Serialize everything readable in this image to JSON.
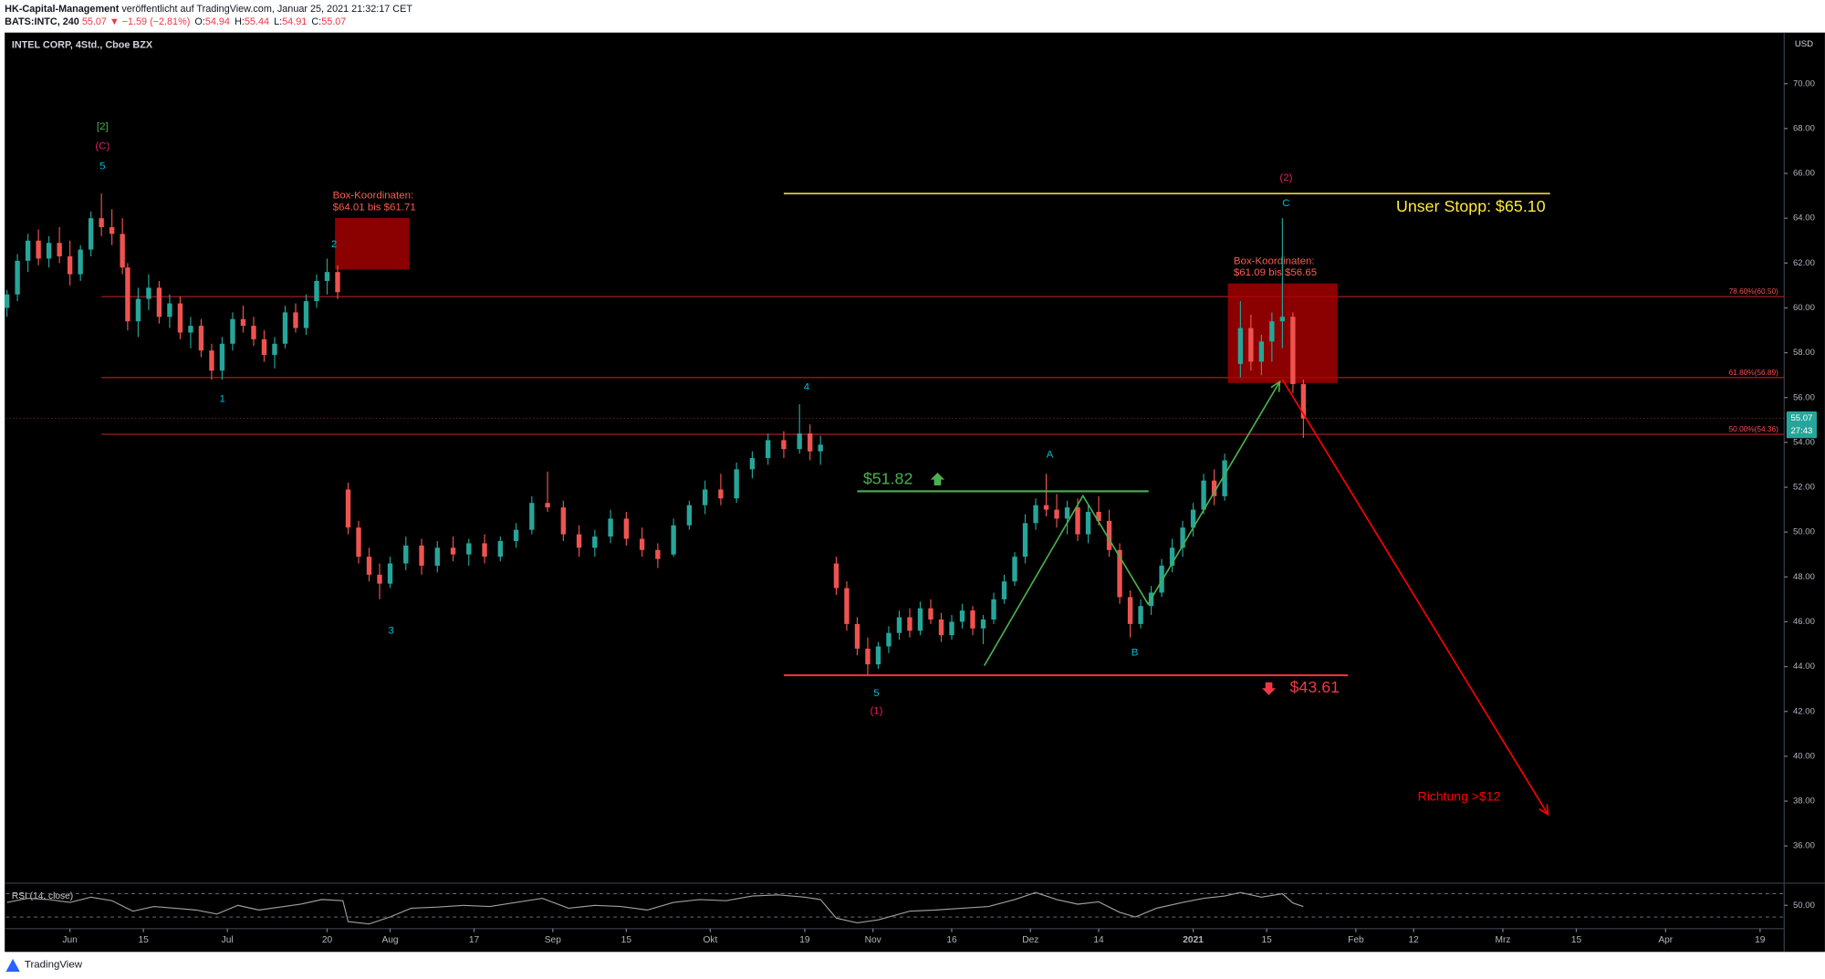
{
  "header": {
    "author": "HK-Capital-Management",
    "published": "veröffentlicht auf TradingView.com, Januar 25, 2021 21:32:17 CET",
    "symbol": "BATS:INTC, 240",
    "last": 55.07,
    "change": "▼ −1.59 (−2.81%)",
    "ohlc": [
      {
        "label": "O:",
        "value": 54.94
      },
      {
        "label": "H:",
        "value": 55.44
      },
      {
        "label": "L:",
        "value": 54.91
      },
      {
        "label": "C:",
        "value": 55.07
      }
    ]
  },
  "logo": "TradingView",
  "chart_data": {
    "type": "candlestick",
    "title": "INTEL CORP, 4Std., Cboe BZX",
    "currency": "USD",
    "colors": {
      "up": "#26a69a",
      "down": "#ef5350"
    },
    "grid": false,
    "x": [
      -12,
      -10,
      -8,
      -6,
      -4,
      -2,
      0,
      2,
      4,
      6,
      8,
      10,
      11,
      13,
      15,
      17,
      19,
      21,
      23,
      25,
      27,
      29,
      31,
      33,
      35,
      37,
      39,
      41,
      43,
      45,
      47,
      49,
      51,
      53,
      55,
      57,
      59,
      61,
      64,
      67,
      70,
      73,
      76,
      79,
      82,
      85,
      88,
      91,
      94,
      97,
      100,
      103,
      106,
      109,
      112,
      115,
      118,
      121,
      124,
      127,
      130,
      133,
      136,
      139,
      141,
      143,
      146,
      148,
      150,
      152,
      154,
      156,
      158,
      160,
      162,
      164,
      166,
      168,
      170,
      172,
      174,
      176,
      178,
      180,
      182,
      184,
      186,
      188,
      190,
      192,
      194,
      196,
      198,
      200,
      202,
      204,
      206,
      208,
      210,
      212,
      214,
      216,
      218,
      220,
      223,
      225,
      227,
      229,
      231,
      233,
      235
    ],
    "open": [
      60.0,
      60.6,
      62.1,
      63.0,
      62.2,
      62.9,
      62.3,
      61.5,
      62.6,
      64.0,
      63.6,
      63.3,
      61.8,
      59.4,
      60.4,
      60.9,
      59.6,
      60.2,
      58.9,
      59.2,
      58.1,
      57.2,
      58.4,
      59.5,
      59.2,
      58.6,
      57.9,
      58.4,
      59.8,
      59.1,
      60.3,
      61.2,
      61.6,
      51.9,
      50.2,
      48.9,
      48.1,
      47.7,
      48.6,
      49.4,
      48.5,
      49.3,
      49.0,
      49.5,
      48.9,
      49.6,
      50.1,
      51.3,
      51.1,
      49.9,
      49.3,
      49.8,
      50.6,
      49.7,
      49.2,
      49.0,
      50.3,
      51.2,
      51.9,
      51.5,
      52.8,
      53.3,
      54.1,
      53.7,
      54.4,
      53.6,
      48.6,
      47.5,
      45.9,
      44.8,
      44.1,
      44.9,
      45.5,
      46.2,
      45.6,
      46.6,
      46.1,
      45.4,
      46.0,
      46.5,
      45.7,
      46.1,
      47.0,
      47.8,
      48.9,
      50.4,
      51.2,
      51.0,
      50.6,
      51.1,
      49.9,
      50.9,
      50.5,
      49.2,
      47.1,
      45.9,
      46.7,
      47.3,
      48.5,
      49.3,
      50.2,
      51.0,
      52.3,
      51.6,
      57.5,
      59.1,
      57.6,
      58.5,
      59.4,
      59.6,
      56.6
    ],
    "high": [
      60.8,
      62.4,
      63.3,
      63.5,
      63.2,
      63.6,
      63.0,
      62.8,
      64.3,
      65.1,
      64.4,
      64.0,
      62.0,
      60.9,
      61.5,
      61.2,
      60.6,
      60.5,
      59.6,
      59.5,
      58.4,
      58.7,
      59.8,
      60.1,
      59.6,
      59.0,
      58.7,
      60.1,
      60.2,
      60.6,
      61.5,
      62.2,
      61.9,
      52.2,
      50.5,
      49.3,
      48.6,
      48.9,
      49.8,
      49.7,
      49.6,
      49.8,
      49.7,
      49.9,
      49.8,
      50.4,
      51.6,
      52.7,
      51.4,
      50.3,
      50.1,
      51.0,
      50.9,
      50.2,
      49.5,
      50.6,
      51.4,
      52.3,
      52.6,
      53.1,
      53.6,
      54.4,
      54.5,
      55.7,
      54.8,
      54.3,
      48.9,
      47.8,
      46.2,
      45.3,
      45.1,
      45.8,
      46.5,
      46.6,
      46.9,
      47.0,
      46.4,
      46.3,
      46.8,
      46.7,
      46.3,
      47.3,
      48.1,
      49.1,
      50.8,
      51.5,
      52.6,
      51.7,
      51.4,
      51.5,
      51.2,
      51.6,
      51.0,
      49.5,
      47.4,
      47.0,
      47.6,
      48.8,
      49.7,
      50.5,
      51.3,
      52.6,
      52.8,
      53.5,
      60.3,
      59.7,
      58.8,
      59.8,
      64.0,
      59.8,
      56.8
    ],
    "low": [
      59.6,
      60.3,
      61.6,
      61.9,
      61.8,
      62.0,
      61.0,
      61.2,
      62.3,
      63.2,
      62.8,
      61.5,
      59.0,
      58.7,
      59.9,
      59.3,
      59.1,
      58.6,
      58.2,
      57.8,
      56.8,
      56.8,
      58.1,
      58.9,
      58.3,
      57.6,
      57.3,
      58.2,
      58.9,
      58.8,
      60.0,
      60.6,
      60.4,
      49.9,
      48.6,
      47.8,
      47.0,
      47.5,
      48.3,
      48.1,
      48.2,
      48.7,
      48.5,
      48.6,
      48.7,
      49.3,
      49.9,
      50.9,
      49.6,
      48.9,
      48.9,
      49.5,
      49.4,
      48.9,
      48.4,
      48.9,
      50.1,
      50.8,
      51.2,
      51.3,
      52.4,
      53.0,
      53.3,
      53.5,
      53.2,
      53.0,
      47.2,
      45.6,
      44.5,
      43.61,
      43.9,
      44.6,
      45.2,
      45.3,
      45.4,
      45.9,
      45.1,
      45.2,
      45.7,
      45.4,
      45.0,
      45.9,
      46.8,
      47.6,
      48.6,
      50.1,
      50.7,
      50.2,
      49.9,
      49.6,
      49.5,
      50.3,
      48.9,
      46.8,
      45.3,
      45.7,
      46.3,
      47.1,
      48.2,
      48.9,
      49.8,
      50.8,
      51.2,
      51.4,
      56.9,
      57.2,
      57.0,
      57.6,
      58.2,
      56.2,
      54.2
    ],
    "close": [
      60.6,
      62.1,
      63.0,
      62.2,
      62.9,
      62.3,
      61.5,
      62.6,
      64.0,
      63.6,
      63.3,
      61.8,
      59.4,
      60.4,
      60.9,
      59.6,
      60.2,
      58.9,
      59.2,
      58.1,
      57.2,
      58.4,
      59.5,
      59.2,
      58.6,
      57.9,
      58.4,
      59.8,
      59.1,
      60.3,
      61.2,
      61.6,
      60.7,
      50.2,
      48.9,
      48.1,
      47.7,
      48.6,
      49.4,
      48.5,
      49.3,
      49.0,
      49.5,
      48.9,
      49.6,
      50.1,
      51.3,
      51.1,
      49.9,
      49.3,
      49.8,
      50.6,
      49.7,
      49.2,
      48.8,
      50.3,
      51.2,
      51.9,
      51.5,
      52.8,
      53.3,
      54.1,
      53.7,
      54.4,
      53.6,
      53.9,
      47.5,
      45.9,
      44.8,
      44.1,
      44.9,
      45.5,
      46.2,
      45.6,
      46.6,
      46.1,
      45.4,
      46.0,
      46.5,
      45.7,
      46.1,
      47.0,
      47.8,
      48.9,
      50.4,
      51.2,
      51.0,
      50.6,
      51.1,
      49.9,
      50.9,
      50.5,
      49.2,
      47.1,
      45.9,
      46.7,
      47.3,
      48.5,
      49.3,
      50.2,
      51.0,
      52.3,
      51.6,
      53.2,
      59.1,
      57.6,
      58.5,
      59.4,
      59.6,
      56.6,
      55.07
    ],
    "xlim": [
      -12.2,
      326.6
    ],
    "ylim": [
      34.44,
      72.28
    ],
    "xticks": [
      {
        "value": 0,
        "label": "Jun"
      },
      {
        "value": 14,
        "label": "15"
      },
      {
        "value": 30,
        "label": "Jul"
      },
      {
        "value": 49,
        "label": "20"
      },
      {
        "value": 61,
        "label": "Aug"
      },
      {
        "value": 77,
        "label": "17"
      },
      {
        "value": 92,
        "label": "Sep"
      },
      {
        "value": 106,
        "label": "15"
      },
      {
        "value": 122,
        "label": "Okt"
      },
      {
        "value": 140,
        "label": "19"
      },
      {
        "value": 153,
        "label": "Nov"
      },
      {
        "value": 168,
        "label": "16"
      },
      {
        "value": 183,
        "label": "Dez"
      },
      {
        "value": 196,
        "label": "14"
      },
      {
        "value": 214,
        "label": "2021"
      },
      {
        "value": 228,
        "label": "15"
      },
      {
        "value": 245,
        "label": "Feb"
      },
      {
        "value": 256,
        "label": "12"
      },
      {
        "value": 273,
        "label": "Mrz"
      },
      {
        "value": 287,
        "label": "15"
      },
      {
        "value": 304,
        "label": "Apr"
      },
      {
        "value": 322,
        "label": "19"
      }
    ],
    "yticks": [
      {
        "value": 36,
        "label": "36.00"
      },
      {
        "value": 38,
        "label": "38.00"
      },
      {
        "value": 40,
        "label": "40.00"
      },
      {
        "value": 42,
        "label": "42.00"
      },
      {
        "value": 44,
        "label": "44.00"
      },
      {
        "value": 46,
        "label": "46.00"
      },
      {
        "value": 48,
        "label": "48.00"
      },
      {
        "value": 50,
        "label": "50.00"
      },
      {
        "value": 52,
        "label": "52.00"
      },
      {
        "value": 54,
        "label": "54.00"
      },
      {
        "value": 56,
        "label": "56.00"
      },
      {
        "value": 58,
        "label": "58.00"
      },
      {
        "value": 60,
        "label": "60.00"
      },
      {
        "value": 62,
        "label": "62.00"
      },
      {
        "value": 64,
        "label": "64.00"
      },
      {
        "value": 66,
        "label": "66.00"
      },
      {
        "value": 68,
        "label": "68.00"
      },
      {
        "value": 70,
        "label": "70.00"
      }
    ],
    "last_price": 55.07,
    "countdown": "27:43",
    "rsi": {
      "title": "RSI (14, close)",
      "color": "#9e9e9e",
      "ylim": [
        12,
        86
      ],
      "yticks": [
        {
          "value": 50,
          "label": "50.00"
        }
      ],
      "levels": [
        70,
        30
      ],
      "x": [
        -12,
        -8,
        -4,
        0,
        4,
        8,
        12,
        16,
        20,
        24,
        28,
        32,
        36,
        40,
        44,
        48,
        52,
        53,
        57,
        61,
        65,
        70,
        75,
        80,
        85,
        90,
        95,
        100,
        105,
        110,
        115,
        120,
        125,
        130,
        135,
        140,
        143,
        146,
        150,
        154,
        160,
        165,
        170,
        175,
        180,
        184,
        188,
        192,
        196,
        200,
        203,
        207,
        212,
        216,
        220,
        223,
        227,
        231,
        233,
        235
      ],
      "values": [
        55,
        62,
        60,
        55,
        64,
        58,
        40,
        48,
        45,
        42,
        35,
        50,
        42,
        47,
        52,
        60,
        58,
        22,
        18,
        30,
        45,
        47,
        50,
        48,
        55,
        62,
        45,
        50,
        48,
        42,
        55,
        60,
        58,
        66,
        68,
        64,
        60,
        28,
        20,
        25,
        40,
        42,
        45,
        48,
        60,
        72,
        60,
        52,
        56,
        38,
        30,
        45,
        55,
        62,
        66,
        72,
        64,
        70,
        54,
        48
      ]
    },
    "fib_levels": [
      {
        "value": 60.5,
        "label": "78.60%(60.50)"
      },
      {
        "value": 56.89,
        "label": "61.80%(56.89)"
      },
      {
        "value": 54.36,
        "label": "50.00%(54.36)"
      }
    ],
    "fib_start": 6,
    "levels": [
      {
        "value": 65.1,
        "label": "Unser Stopp: $65.10",
        "color": "#ffeb3b",
        "x": [
          136,
          282
        ]
      },
      {
        "value": 51.82,
        "label": "$51.82",
        "color": "#4caf50",
        "x": [
          150,
          205.5
        ]
      },
      {
        "value": 43.61,
        "label": "$43.61",
        "color": "#f23645",
        "x": [
          136,
          243.5
        ]
      }
    ],
    "boxes": [
      {
        "top": 64.01,
        "bottom": 61.71,
        "x": [
          50.5,
          64.7
        ],
        "label": [
          "Box-Koordinaten:",
          "$64.01 bis $61.71"
        ]
      },
      {
        "top": 61.09,
        "bottom": 56.65,
        "x": [
          220.6,
          241.5
        ],
        "label": [
          "Box-Koordinaten:",
          "$61.09 bis $56.65"
        ]
      }
    ],
    "drawings": [
      {
        "color": "#4caf50",
        "x": [
          174.2,
          193,
          205.4,
          230.5
        ],
        "y": [
          44.04,
          51.62,
          46.79,
          56.71
        ]
      },
      {
        "color": "#ff0000",
        "x": [
          231,
          281.6
        ],
        "y": [
          56.8,
          37.4
        ],
        "label": "Richtung >$12"
      }
    ],
    "wave_labels": [
      {
        "text": "[2]",
        "color": "#4caf50"
      },
      {
        "text": "(C)",
        "color": "#e91e63"
      },
      {
        "text": "5",
        "color": "#00bcd4"
      },
      {
        "text": "2",
        "color": "#00bcd4"
      },
      {
        "text": "1",
        "color": "#00bcd4"
      },
      {
        "text": "3",
        "color": "#00bcd4"
      },
      {
        "text": "4",
        "color": "#00bcd4"
      },
      {
        "text": "5",
        "color": "#00bcd4"
      },
      {
        "text": "(1)",
        "color": "#e91e63"
      },
      {
        "text": "A",
        "color": "#00bcd4"
      },
      {
        "text": "B",
        "color": "#00bcd4"
      },
      {
        "text": "C",
        "color": "#00bcd4"
      },
      {
        "text": "(2)",
        "color": "#e91e63"
      }
    ]
  }
}
